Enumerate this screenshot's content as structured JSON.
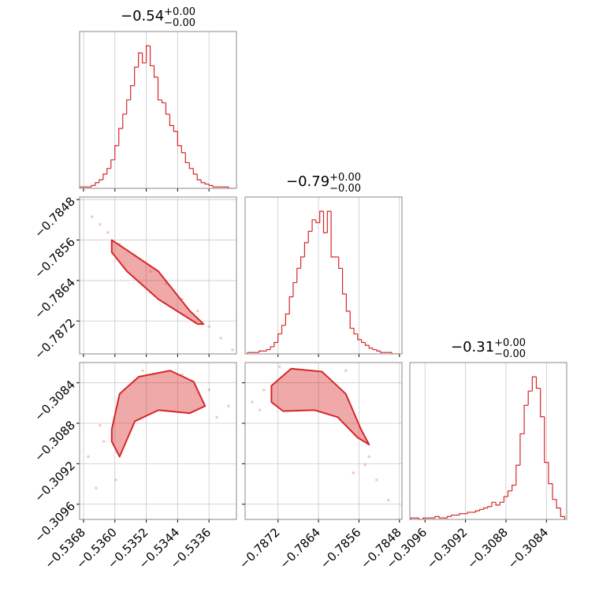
{
  "chart_data": [
    {
      "type": "histogram",
      "color": "#d62728",
      "grid": true,
      "title": {
        "text": "−0.54",
        "upper": "+0.00",
        "lower": "−0.00"
      },
      "bins": [
        -0.5369,
        -0.5368,
        -0.5367,
        -0.5366,
        -0.5365,
        -0.5364,
        -0.5363,
        -0.5362,
        -0.5361,
        -0.536,
        -0.5359,
        -0.5358,
        -0.5357,
        -0.5356,
        -0.5355,
        -0.5354,
        -0.5353,
        -0.5352,
        -0.5351,
        -0.535,
        -0.5349,
        -0.5348,
        -0.5347,
        -0.5346,
        -0.5345,
        -0.5344,
        -0.5343,
        -0.5342,
        -0.5341,
        -0.534,
        -0.5339,
        -0.5338,
        -0.5337,
        -0.5336,
        -0.5335,
        -0.5334,
        -0.5333,
        -0.5332,
        -0.5331,
        -0.533,
        -0.5329
      ],
      "values": [
        1,
        1,
        1,
        2,
        4,
        6,
        10,
        14,
        20,
        30,
        42,
        52,
        62,
        72,
        85,
        95,
        88,
        100,
        86,
        78,
        62,
        60,
        52,
        44,
        40,
        30,
        25,
        18,
        14,
        10,
        6,
        4,
        3,
        2,
        1,
        1,
        1,
        1,
        0,
        0
      ],
      "xlim": [
        -0.5369,
        -0.5329
      ],
      "ylim": [
        0,
        110
      ],
      "xticks": [
        -0.5368,
        -0.536,
        -0.5352,
        -0.5344,
        -0.5336
      ]
    },
    {
      "type": "scatter",
      "color": "#d62728",
      "grid": true,
      "x": [
        -0.53658,
        -0.53638,
        -0.53618,
        -0.53588,
        -0.53549,
        -0.53509,
        -0.53469,
        -0.53429,
        -0.53389,
        -0.5336,
        -0.5333,
        -0.533
      ],
      "y": [
        -0.78514,
        -0.78529,
        -0.78545,
        -0.78568,
        -0.78591,
        -0.78622,
        -0.78646,
        -0.78677,
        -0.787,
        -0.78731,
        -0.78754,
        -0.78777
      ],
      "contour": {
        "x": [
          -0.53608,
          -0.53569,
          -0.53489,
          -0.53409,
          -0.53374,
          -0.53389,
          -0.53489,
          -0.53569,
          -0.53608
        ],
        "y": [
          -0.7856,
          -0.7858,
          -0.78622,
          -0.787,
          -0.78726,
          -0.78726,
          -0.78677,
          -0.78622,
          -0.78584
        ]
      },
      "xlim": [
        -0.5369,
        -0.5329
      ],
      "ylim": [
        -0.78785,
        -0.78475
      ],
      "xticks": [
        -0.5368,
        -0.536,
        -0.5352,
        -0.5344,
        -0.5336
      ],
      "yticks": [
        {
          "value": -0.7848,
          "label": "−0.7848"
        },
        {
          "value": -0.7856,
          "label": "−0.7856"
        },
        {
          "value": -0.7864,
          "label": "−0.7864"
        },
        {
          "value": -0.7872,
          "label": "−0.7872"
        }
      ]
    },
    {
      "type": "histogram",
      "color": "#d62728",
      "grid": true,
      "title": {
        "text": "−0.79",
        "upper": "+0.00",
        "lower": "−0.00"
      },
      "bins": [
        -0.7878,
        -0.787725,
        -0.78765,
        -0.787575,
        -0.7875,
        -0.787425,
        -0.78735,
        -0.787275,
        -0.7872,
        -0.787125,
        -0.78705,
        -0.786975,
        -0.7869,
        -0.786825,
        -0.78675,
        -0.786675,
        -0.7866,
        -0.786525,
        -0.78645,
        -0.786375,
        -0.7863,
        -0.786225,
        -0.78615,
        -0.786075,
        -0.786,
        -0.785925,
        -0.78585,
        -0.785775,
        -0.7857,
        -0.785625,
        -0.78555,
        -0.785475,
        -0.7854,
        -0.785325,
        -0.78525,
        -0.785175,
        -0.7851,
        -0.785025,
        -0.78495,
        -0.784875,
        -0.7848
      ],
      "values": [
        1,
        1,
        1,
        2,
        2,
        3,
        5,
        8,
        14,
        20,
        28,
        40,
        50,
        60,
        68,
        78,
        86,
        94,
        92,
        100,
        85,
        100,
        68,
        68,
        60,
        42,
        30,
        18,
        14,
        10,
        8,
        6,
        4,
        3,
        2,
        1,
        1,
        1,
        0,
        0
      ],
      "xlim": [
        -0.78785,
        -0.78475
      ],
      "ylim": [
        0,
        110
      ],
      "xticks": [
        -0.7872,
        -0.7864,
        -0.7856,
        -0.7848
      ]
    },
    {
      "type": "scatter",
      "color": "#d62728",
      "grid": true,
      "x": [
        -0.53668,
        -0.53648,
        -0.53628,
        -0.53598,
        -0.53529,
        -0.53429,
        -0.5336,
        -0.5334,
        -0.5331,
        -0.53638
      ],
      "y": [
        -0.30913,
        -0.30944,
        -0.30898,
        -0.30936,
        -0.30828,
        -0.30832,
        -0.30847,
        -0.30874,
        -0.30863,
        -0.30882
      ],
      "contour": {
        "x": [
          -0.53608,
          -0.53588,
          -0.53539,
          -0.53459,
          -0.53399,
          -0.5337,
          -0.53409,
          -0.53489,
          -0.53549,
          -0.53588,
          -0.53608
        ],
        "y": [
          -0.30886,
          -0.30851,
          -0.30834,
          -0.30828,
          -0.30839,
          -0.30863,
          -0.3087,
          -0.30867,
          -0.30878,
          -0.30913,
          -0.30898
        ]
      },
      "xlim": [
        -0.5369,
        -0.5329
      ],
      "ylim": [
        -0.30975,
        -0.3082
      ],
      "xticks": [
        {
          "value": -0.5368,
          "label": "−0.5368"
        },
        {
          "value": -0.536,
          "label": "−0.5360"
        },
        {
          "value": -0.5352,
          "label": "−0.5352"
        },
        {
          "value": -0.5344,
          "label": "−0.5344"
        },
        {
          "value": -0.5336,
          "label": "−0.5336"
        }
      ],
      "yticks": [
        {
          "value": -0.3084,
          "label": "−0.3084"
        },
        {
          "value": -0.3088,
          "label": "−0.3088"
        },
        {
          "value": -0.3092,
          "label": "−0.3092"
        },
        {
          "value": -0.3096,
          "label": "−0.3096"
        }
      ]
    },
    {
      "type": "scatter",
      "color": "#d62728",
      "grid": true,
      "x": [
        -0.78771,
        -0.78748,
        -0.78717,
        -0.78586,
        -0.78548,
        -0.78525,
        -0.78502,
        -0.78756,
        -0.7854,
        -0.78571
      ],
      "y": [
        -0.30859,
        -0.30847,
        -0.30824,
        -0.30828,
        -0.30921,
        -0.30936,
        -0.30956,
        -0.30867,
        -0.30913,
        -0.30929
      ],
      "contour": {
        "x": [
          -0.78733,
          -0.78694,
          -0.78633,
          -0.78586,
          -0.78556,
          -0.7854,
          -0.78563,
          -0.78602,
          -0.78648,
          -0.7871,
          -0.78733
        ],
        "y": [
          -0.30843,
          -0.30826,
          -0.30829,
          -0.30851,
          -0.30886,
          -0.30901,
          -0.30894,
          -0.30874,
          -0.30867,
          -0.30868,
          -0.30859
        ]
      },
      "xlim": [
        -0.78785,
        -0.78475
      ],
      "ylim": [
        -0.30975,
        -0.3082
      ],
      "xticks": [
        {
          "value": -0.7872,
          "label": "−0.7872"
        },
        {
          "value": -0.7864,
          "label": "−0.7864"
        },
        {
          "value": -0.7856,
          "label": "−0.7856"
        },
        {
          "value": -0.7848,
          "label": "−0.7848"
        }
      ],
      "yticks": [
        -0.3084,
        -0.3088,
        -0.3092,
        -0.3096
      ]
    },
    {
      "type": "histogram",
      "color": "#d62728",
      "grid": true,
      "title": {
        "text": "−0.31",
        "upper": "+0.00",
        "lower": "−0.00"
      },
      "bins": [
        -0.30974,
        -0.3097,
        -0.30966,
        -0.30962,
        -0.30958,
        -0.30954,
        -0.3095,
        -0.30946,
        -0.30942,
        -0.30938,
        -0.30934,
        -0.3093,
        -0.30926,
        -0.30922,
        -0.30918,
        -0.30914,
        -0.3091,
        -0.30906,
        -0.30902,
        -0.30898,
        -0.30894,
        -0.3089,
        -0.30886,
        -0.30882,
        -0.30878,
        -0.30874,
        -0.3087,
        -0.30866,
        -0.30862,
        -0.30858,
        -0.30854,
        -0.3085,
        -0.30846,
        -0.30842,
        -0.30838,
        -0.30834,
        -0.3083,
        -0.30826,
        -0.30822
      ],
      "values": [
        1,
        1,
        0,
        1,
        1,
        1,
        2,
        1,
        1,
        2,
        3,
        3,
        4,
        4,
        5,
        5,
        6,
        7,
        8,
        9,
        12,
        10,
        12,
        16,
        20,
        24,
        38,
        60,
        80,
        90,
        100,
        92,
        72,
        40,
        25,
        14,
        8,
        2
      ],
      "xlim": [
        -0.30975,
        -0.3082
      ],
      "ylim": [
        0,
        110
      ],
      "xticks": [
        {
          "value": -0.3096,
          "label": "−0.3096"
        },
        {
          "value": -0.3092,
          "label": "−0.3092"
        },
        {
          "value": -0.3088,
          "label": "−0.3088"
        },
        {
          "value": -0.3084,
          "label": "−0.3084"
        }
      ]
    }
  ]
}
